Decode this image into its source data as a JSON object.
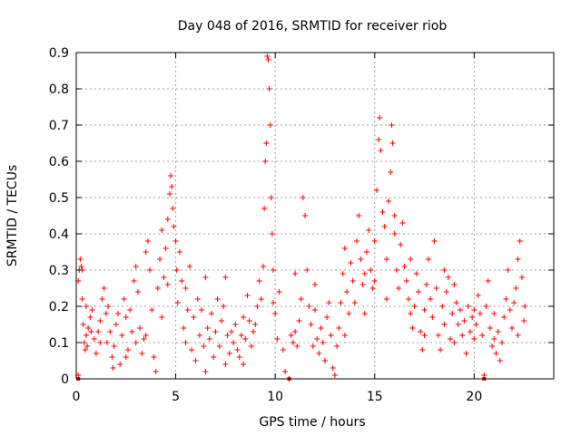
{
  "chart_data": {
    "type": "scatter",
    "title": "Day 048 of 2016, SRMTID for receiver riob",
    "xlabel": "GPS time / hours",
    "ylabel": "SRMTID / TECUs",
    "xlim": [
      0,
      24
    ],
    "ylim": [
      0,
      0.9
    ],
    "x_ticks": [
      "0",
      "5",
      "10",
      "15",
      "20"
    ],
    "y_ticks": [
      "0",
      "0.1",
      "0.2",
      "0.3",
      "0.4",
      "0.5",
      "0.6",
      "0.7",
      "0.8",
      "0.9"
    ],
    "grid": true,
    "marker": "plus",
    "series": [
      {
        "name": "SRMTID",
        "color": "#ff0000",
        "points": [
          [
            0.1,
            0.01
          ],
          [
            0.1,
            0.27
          ],
          [
            0.15,
            0.3
          ],
          [
            0.2,
            0.33
          ],
          [
            0.25,
            0.31
          ],
          [
            0.3,
            0.3
          ],
          [
            0.3,
            0.22
          ],
          [
            0.35,
            0.15
          ],
          [
            0.4,
            0.1
          ],
          [
            0.45,
            0.08
          ],
          [
            0.5,
            0.12
          ],
          [
            0.55,
            0.09
          ],
          [
            0.6,
            0.14
          ],
          [
            0.7,
            0.17
          ],
          [
            0.75,
            0.13
          ],
          [
            0.8,
            0.19
          ],
          [
            0.9,
            0.11
          ],
          [
            1.0,
            0.07
          ],
          [
            1.1,
            0.13
          ],
          [
            1.2,
            0.16
          ],
          [
            1.3,
            0.22
          ],
          [
            1.4,
            0.25
          ],
          [
            1.5,
            0.18
          ],
          [
            1.55,
            0.1
          ],
          [
            1.6,
            0.2
          ],
          [
            1.7,
            0.13
          ],
          [
            1.8,
            0.06
          ],
          [
            1.85,
            0.03
          ],
          [
            1.9,
            0.09
          ],
          [
            2.0,
            0.15
          ],
          [
            2.1,
            0.18
          ],
          [
            2.2,
            0.04
          ],
          [
            2.3,
            0.12
          ],
          [
            2.4,
            0.22
          ],
          [
            2.5,
            0.17
          ],
          [
            2.6,
            0.08
          ],
          [
            2.7,
            0.19
          ],
          [
            2.8,
            0.13
          ],
          [
            2.9,
            0.27
          ],
          [
            3.0,
            0.31
          ],
          [
            3.1,
            0.24
          ],
          [
            3.2,
            0.14
          ],
          [
            3.3,
            0.07
          ],
          [
            3.4,
            0.11
          ],
          [
            3.5,
            0.35
          ],
          [
            3.6,
            0.38
          ],
          [
            3.7,
            0.3
          ],
          [
            3.8,
            0.19
          ],
          [
            3.9,
            0.06
          ],
          [
            4.0,
            0.02
          ],
          [
            4.1,
            0.25
          ],
          [
            4.2,
            0.33
          ],
          [
            4.3,
            0.41
          ],
          [
            4.4,
            0.28
          ],
          [
            4.5,
            0.36
          ],
          [
            4.6,
            0.44
          ],
          [
            4.7,
            0.51
          ],
          [
            4.75,
            0.56
          ],
          [
            4.8,
            0.53
          ],
          [
            4.85,
            0.47
          ],
          [
            4.9,
            0.42
          ],
          [
            5.0,
            0.38
          ],
          [
            5.05,
            0.3
          ],
          [
            5.1,
            0.21
          ],
          [
            5.2,
            0.35
          ],
          [
            5.3,
            0.27
          ],
          [
            5.4,
            0.14
          ],
          [
            5.5,
            0.25
          ],
          [
            5.6,
            0.19
          ],
          [
            5.7,
            0.31
          ],
          [
            5.8,
            0.08
          ],
          [
            5.9,
            0.17
          ],
          [
            6.0,
            0.05
          ],
          [
            6.1,
            0.22
          ],
          [
            6.2,
            0.12
          ],
          [
            6.3,
            0.19
          ],
          [
            6.4,
            0.09
          ],
          [
            6.5,
            0.02
          ],
          [
            6.6,
            0.14
          ],
          [
            6.7,
            0.11
          ],
          [
            6.8,
            0.18
          ],
          [
            6.9,
            0.06
          ],
          [
            7.0,
            0.13
          ],
          [
            7.1,
            0.22
          ],
          [
            7.2,
            0.09
          ],
          [
            7.3,
            0.16
          ],
          [
            7.4,
            0.2
          ],
          [
            7.5,
            0.28
          ],
          [
            7.6,
            0.12
          ],
          [
            7.7,
            0.07
          ],
          [
            7.8,
            0.13
          ],
          [
            7.9,
            0.1
          ],
          [
            8.0,
            0.15
          ],
          [
            8.1,
            0.08
          ],
          [
            8.2,
            0.06
          ],
          [
            8.3,
            0.12
          ],
          [
            8.4,
            0.04
          ],
          [
            8.5,
            0.11
          ],
          [
            8.6,
            0.23
          ],
          [
            8.7,
            0.16
          ],
          [
            8.8,
            0.09
          ],
          [
            8.9,
            0.13
          ],
          [
            9.0,
            0.15
          ],
          [
            9.1,
            0.2
          ],
          [
            9.2,
            0.27
          ],
          [
            9.3,
            0.22
          ],
          [
            9.4,
            0.31
          ],
          [
            9.45,
            0.47
          ],
          [
            9.5,
            0.6
          ],
          [
            9.55,
            0.65
          ],
          [
            9.6,
            0.89
          ],
          [
            9.65,
            0.88
          ],
          [
            9.7,
            0.8
          ],
          [
            9.75,
            0.7
          ],
          [
            9.8,
            0.5
          ],
          [
            9.85,
            0.4
          ],
          [
            9.9,
            0.3
          ],
          [
            10.0,
            0.18
          ],
          [
            10.1,
            0.11
          ],
          [
            10.2,
            0.24
          ],
          [
            10.4,
            0.08
          ],
          [
            10.5,
            0.02
          ],
          [
            10.7,
            0.0
          ],
          [
            10.8,
            0.12
          ],
          [
            10.9,
            0.1
          ],
          [
            11.0,
            0.13
          ],
          [
            11.1,
            0.09
          ],
          [
            11.2,
            0.16
          ],
          [
            11.3,
            0.22
          ],
          [
            11.4,
            0.5
          ],
          [
            11.5,
            0.45
          ],
          [
            11.6,
            0.3
          ],
          [
            11.7,
            0.2
          ],
          [
            11.8,
            0.15
          ],
          [
            11.9,
            0.09
          ],
          [
            12.0,
            0.19
          ],
          [
            12.1,
            0.11
          ],
          [
            12.2,
            0.07
          ],
          [
            12.3,
            0.14
          ],
          [
            12.4,
            0.1
          ],
          [
            12.5,
            0.05
          ],
          [
            12.6,
            0.17
          ],
          [
            12.7,
            0.21
          ],
          [
            12.8,
            0.12
          ],
          [
            12.9,
            0.03
          ],
          [
            13.0,
            0.01
          ],
          [
            13.1,
            0.09
          ],
          [
            13.2,
            0.14
          ],
          [
            13.3,
            0.21
          ],
          [
            13.4,
            0.29
          ],
          [
            13.5,
            0.36
          ],
          [
            13.6,
            0.24
          ],
          [
            13.7,
            0.18
          ],
          [
            13.8,
            0.32
          ],
          [
            13.9,
            0.27
          ],
          [
            14.0,
            0.21
          ],
          [
            14.1,
            0.38
          ],
          [
            14.2,
            0.45
          ],
          [
            14.3,
            0.33
          ],
          [
            14.4,
            0.26
          ],
          [
            14.5,
            0.29
          ],
          [
            14.6,
            0.35
          ],
          [
            14.7,
            0.41
          ],
          [
            14.8,
            0.3
          ],
          [
            14.9,
            0.25
          ],
          [
            15.0,
            0.38
          ],
          [
            15.1,
            0.52
          ],
          [
            15.2,
            0.66
          ],
          [
            15.25,
            0.72
          ],
          [
            15.3,
            0.63
          ],
          [
            15.4,
            0.46
          ],
          [
            15.5,
            0.42
          ],
          [
            15.6,
            0.33
          ],
          [
            15.7,
            0.49
          ],
          [
            15.8,
            0.57
          ],
          [
            15.85,
            0.7
          ],
          [
            15.9,
            0.65
          ],
          [
            16.0,
            0.45
          ],
          [
            16.1,
            0.3
          ],
          [
            16.2,
            0.25
          ],
          [
            16.3,
            0.37
          ],
          [
            16.4,
            0.43
          ],
          [
            16.5,
            0.31
          ],
          [
            16.6,
            0.27
          ],
          [
            16.7,
            0.22
          ],
          [
            16.8,
            0.18
          ],
          [
            16.9,
            0.14
          ],
          [
            17.0,
            0.2
          ],
          [
            17.1,
            0.29
          ],
          [
            17.2,
            0.24
          ],
          [
            17.3,
            0.13
          ],
          [
            17.4,
            0.08
          ],
          [
            17.5,
            0.19
          ],
          [
            17.6,
            0.26
          ],
          [
            17.7,
            0.33
          ],
          [
            17.8,
            0.22
          ],
          [
            17.9,
            0.17
          ],
          [
            18.0,
            0.38
          ],
          [
            18.1,
            0.25
          ],
          [
            18.2,
            0.12
          ],
          [
            18.3,
            0.08
          ],
          [
            18.4,
            0.2
          ],
          [
            18.5,
            0.15
          ],
          [
            18.6,
            0.24
          ],
          [
            18.7,
            0.28
          ],
          [
            18.8,
            0.11
          ],
          [
            18.9,
            0.18
          ],
          [
            19.0,
            0.1
          ],
          [
            19.1,
            0.21
          ],
          [
            19.2,
            0.15
          ],
          [
            19.3,
            0.19
          ],
          [
            19.4,
            0.12
          ],
          [
            19.5,
            0.16
          ],
          [
            19.6,
            0.07
          ],
          [
            19.7,
            0.2
          ],
          [
            19.8,
            0.13
          ],
          [
            19.9,
            0.17
          ],
          [
            20.0,
            0.11
          ],
          [
            20.1,
            0.15
          ],
          [
            20.2,
            0.23
          ],
          [
            20.3,
            0.18
          ],
          [
            20.4,
            0.12
          ],
          [
            20.5,
            0.01
          ],
          [
            20.6,
            0.2
          ],
          [
            20.7,
            0.27
          ],
          [
            20.8,
            0.14
          ],
          [
            20.9,
            0.09
          ],
          [
            21.0,
            0.11
          ],
          [
            21.1,
            0.07
          ],
          [
            21.2,
            0.13
          ],
          [
            21.3,
            0.05
          ],
          [
            21.4,
            0.1
          ],
          [
            21.5,
            0.17
          ],
          [
            21.6,
            0.22
          ],
          [
            21.7,
            0.3
          ],
          [
            21.8,
            0.19
          ],
          [
            21.9,
            0.14
          ],
          [
            22.0,
            0.21
          ],
          [
            22.1,
            0.25
          ],
          [
            22.2,
            0.33
          ],
          [
            22.3,
            0.38
          ],
          [
            22.4,
            0.28
          ],
          [
            22.5,
            0.16
          ],
          [
            22.55,
            0.2
          ],
          [
            0.5,
            0.2
          ],
          [
            1.2,
            0.1
          ],
          [
            2.5,
            0.06
          ],
          [
            3.5,
            0.12
          ],
          [
            4.3,
            0.17
          ],
          [
            5.5,
            0.1
          ],
          [
            6.5,
            0.28
          ],
          [
            7.5,
            0.04
          ],
          [
            8.4,
            0.17
          ],
          [
            11.0,
            0.29
          ],
          [
            12.0,
            0.26
          ],
          [
            13.5,
            0.12
          ],
          [
            14.5,
            0.18
          ],
          [
            16.8,
            0.33
          ],
          [
            17.5,
            0.12
          ],
          [
            19.0,
            0.26
          ],
          [
            20.0,
            0.19
          ],
          [
            21.0,
            0.18
          ],
          [
            22.2,
            0.12
          ],
          [
            9.9,
            0.21
          ],
          [
            15.0,
            0.27
          ],
          [
            15.6,
            0.22
          ],
          [
            4.6,
            0.26
          ],
          [
            3.0,
            0.1
          ],
          [
            18.5,
            0.3
          ],
          [
            16.0,
            0.4
          ]
        ]
      }
    ],
    "baseline_markers_x": [
      0.1,
      10.7,
      20.5
    ]
  }
}
